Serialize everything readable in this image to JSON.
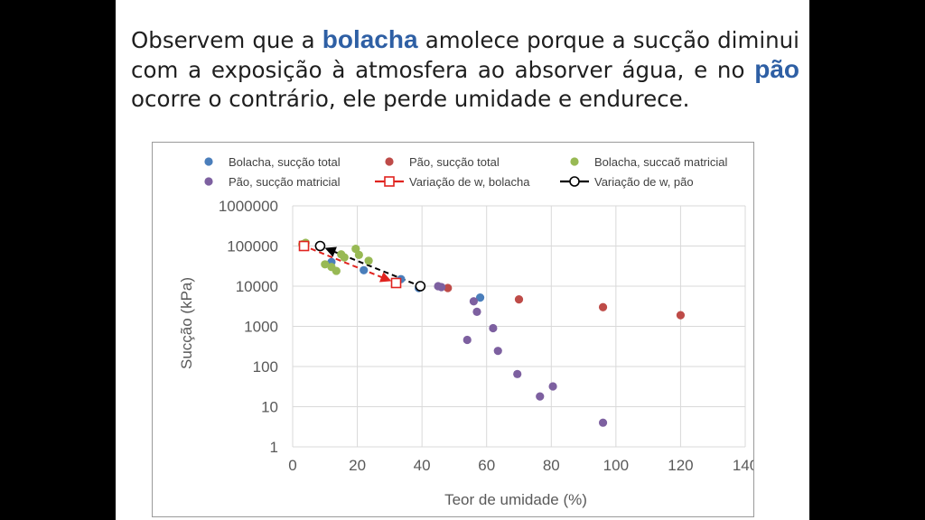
{
  "heading": {
    "part1": "Observem que a ",
    "kw1": "bolacha",
    "part2": " amolece porque a sucção diminui com a exposição à atmosfera ao absorver água, e no ",
    "kw2": "pão",
    "part3": " ocorre o contrário, ele perde umidade e endurece."
  },
  "chart_data": {
    "type": "scatter",
    "xlabel": "Teor de umidade (%)",
    "ylabel": "Sucção (kPa)",
    "xlim": [
      0,
      140
    ],
    "ylim": [
      1,
      1000000
    ],
    "yscale": "log",
    "grid": true,
    "legend_position": "top",
    "x_ticks": [
      0,
      20,
      40,
      60,
      80,
      100,
      120,
      140
    ],
    "y_ticks": [
      1,
      10,
      100,
      1000,
      10000,
      100000,
      1000000
    ],
    "x_tick_labels": [
      "0",
      "20",
      "40",
      "60",
      "80",
      "100",
      "120",
      "140"
    ],
    "y_tick_labels": [
      "1",
      "10",
      "100",
      "1000",
      "10000",
      "100000",
      "1000000"
    ],
    "series": [
      {
        "name": "Bolacha, sucção total",
        "marker": "dot",
        "color": "#4a7ebb",
        "points": [
          [
            12,
            40000
          ],
          [
            22,
            25000
          ],
          [
            33.5,
            15000
          ],
          [
            39,
            9000
          ],
          [
            58,
            5200
          ]
        ]
      },
      {
        "name": "Pão, sucção total",
        "marker": "dot",
        "color": "#be4b48",
        "points": [
          [
            48,
            9000
          ],
          [
            70,
            4700
          ],
          [
            96,
            3000
          ],
          [
            120,
            1900
          ]
        ]
      },
      {
        "name": "Bolacha, succaõ matricial",
        "marker": "dot",
        "color": "#98b954",
        "points": [
          [
            3,
            110000
          ],
          [
            4,
            120000
          ],
          [
            10,
            35000
          ],
          [
            12,
            30000
          ],
          [
            13.5,
            24000
          ],
          [
            15,
            62000
          ],
          [
            16,
            52000
          ],
          [
            19.5,
            85000
          ],
          [
            20.5,
            60000
          ],
          [
            23.5,
            43000
          ]
        ]
      },
      {
        "name": "Pão, sucção matricial",
        "marker": "dot",
        "color": "#7d60a0",
        "points": [
          [
            45,
            10000
          ],
          [
            46,
            9500
          ],
          [
            56,
            4200
          ],
          [
            57,
            2300
          ],
          [
            62,
            900
          ],
          [
            54,
            460
          ],
          [
            63.5,
            245
          ],
          [
            69.5,
            65
          ],
          [
            76.5,
            18
          ],
          [
            80.5,
            32
          ],
          [
            96,
            4
          ]
        ]
      },
      {
        "name": "Variação de w, bolacha",
        "marker": "hollow-square",
        "line": "dashed",
        "color": "#e0231f",
        "points": [
          [
            3.5,
            100000
          ],
          [
            32,
            12000
          ]
        ]
      },
      {
        "name": "Variação de w, pão",
        "marker": "hollow-circle",
        "line": "dashed",
        "color": "#000000",
        "points": [
          [
            39.5,
            10000
          ],
          [
            8.5,
            100000
          ]
        ]
      }
    ]
  }
}
